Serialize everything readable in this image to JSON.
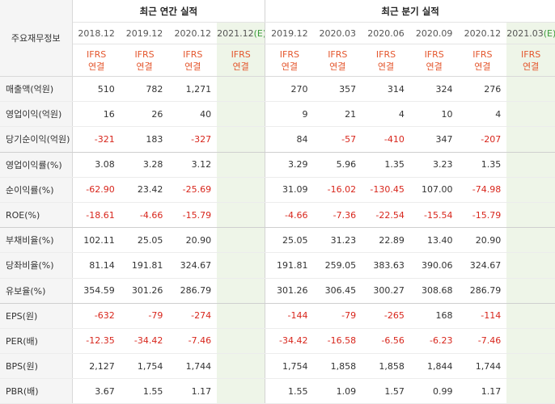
{
  "header": {
    "label_col": "주요재무정보",
    "annual_title": "최근 연간 실적",
    "quarter_title": "최근 분기 실적",
    "annual_periods": [
      "2018.12",
      "2019.12",
      "2020.12",
      "2021.12"
    ],
    "annual_est_mark": "(E)",
    "quarter_periods": [
      "2019.12",
      "2020.03",
      "2020.06",
      "2020.09",
      "2020.12",
      "2021.03"
    ],
    "quarter_est_mark": "(E)",
    "ifrs_top": "IFRS",
    "ifrs_bottom": "연결"
  },
  "rows": [
    {
      "label": "매출액(억원)",
      "annual": [
        "510",
        "782",
        "1,271",
        ""
      ],
      "quarter": [
        "270",
        "357",
        "314",
        "324",
        "276",
        ""
      ]
    },
    {
      "label": "영업이익(억원)",
      "annual": [
        "16",
        "26",
        "40",
        ""
      ],
      "quarter": [
        "9",
        "21",
        "4",
        "10",
        "4",
        ""
      ]
    },
    {
      "label": "당기순이익(억원)",
      "annual": [
        "-321",
        "183",
        "-327",
        ""
      ],
      "quarter": [
        "84",
        "-57",
        "-410",
        "347",
        "-207",
        ""
      ]
    },
    {
      "label": "영업이익률(%)",
      "annual": [
        "3.08",
        "3.28",
        "3.12",
        ""
      ],
      "quarter": [
        "3.29",
        "5.96",
        "1.35",
        "3.23",
        "1.35",
        ""
      ]
    },
    {
      "label": "순이익률(%)",
      "annual": [
        "-62.90",
        "23.42",
        "-25.69",
        ""
      ],
      "quarter": [
        "31.09",
        "-16.02",
        "-130.45",
        "107.00",
        "-74.98",
        ""
      ]
    },
    {
      "label": "ROE(%)",
      "annual": [
        "-18.61",
        "-4.66",
        "-15.79",
        ""
      ],
      "quarter": [
        "-4.66",
        "-7.36",
        "-22.54",
        "-15.54",
        "-15.79",
        ""
      ]
    },
    {
      "label": "부채비율(%)",
      "annual": [
        "102.11",
        "25.05",
        "20.90",
        ""
      ],
      "quarter": [
        "25.05",
        "31.23",
        "22.89",
        "13.40",
        "20.90",
        ""
      ]
    },
    {
      "label": "당좌비율(%)",
      "annual": [
        "81.14",
        "191.81",
        "324.67",
        ""
      ],
      "quarter": [
        "191.81",
        "259.05",
        "383.63",
        "390.06",
        "324.67",
        ""
      ]
    },
    {
      "label": "유보율(%)",
      "annual": [
        "354.59",
        "301.26",
        "286.79",
        ""
      ],
      "quarter": [
        "301.26",
        "306.45",
        "300.27",
        "308.68",
        "286.79",
        ""
      ]
    },
    {
      "label": "EPS(원)",
      "annual": [
        "-632",
        "-79",
        "-274",
        ""
      ],
      "quarter": [
        "-144",
        "-79",
        "-265",
        "168",
        "-114",
        ""
      ]
    },
    {
      "label": "PER(배)",
      "annual": [
        "-12.35",
        "-34.42",
        "-7.46",
        ""
      ],
      "quarter": [
        "-34.42",
        "-16.58",
        "-6.56",
        "-6.23",
        "-7.46",
        ""
      ]
    },
    {
      "label": "BPS(원)",
      "annual": [
        "2,127",
        "1,754",
        "1,744",
        ""
      ],
      "quarter": [
        "1,754",
        "1,858",
        "1,858",
        "1,844",
        "1,744",
        ""
      ]
    },
    {
      "label": "PBR(배)",
      "annual": [
        "3.67",
        "1.55",
        "1.17",
        ""
      ],
      "quarter": [
        "1.55",
        "1.09",
        "1.57",
        "0.99",
        "1.17",
        ""
      ]
    }
  ],
  "colors": {
    "negative": "#d8261c",
    "ifrs": "#e4572e",
    "estimate_bg": "#eef5e8",
    "estimate_mark": "#3a9b3a"
  }
}
